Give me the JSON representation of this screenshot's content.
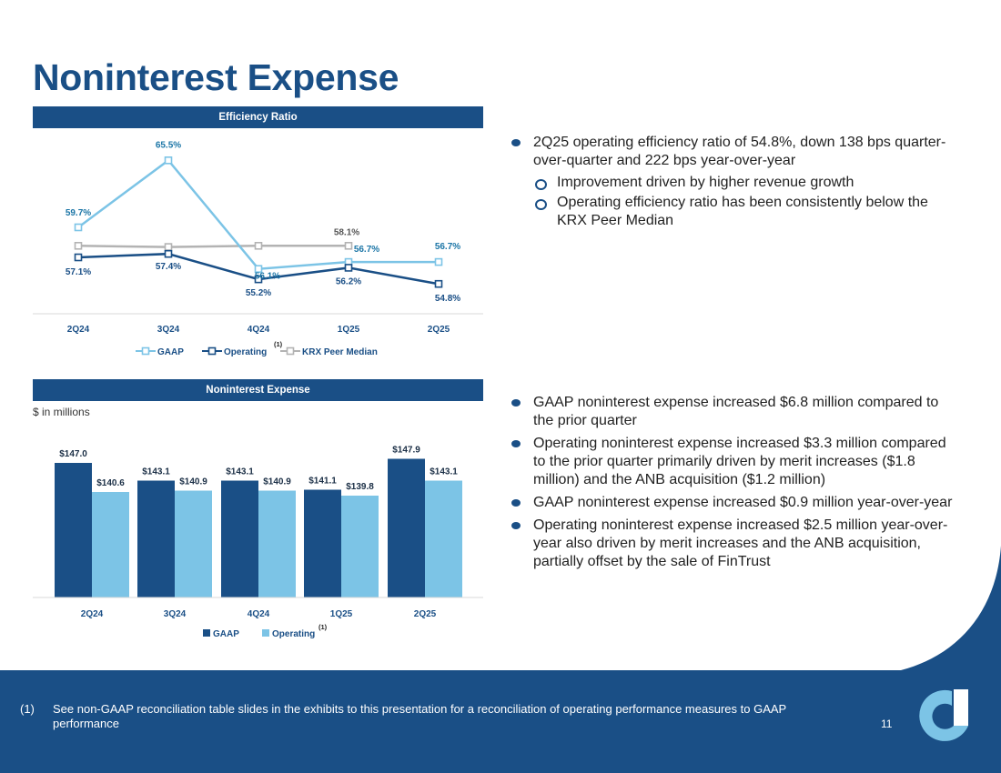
{
  "page": {
    "title": "Noninterest Expense",
    "page_number": "11",
    "footnote_num": "(1)",
    "footnote_text": "See non-GAAP reconciliation table slides in the exhibits to this presentation for a reconciliation of operating performance measures to GAAP performance"
  },
  "colors": {
    "navy": "#1a4f86",
    "light_blue": "#7cc4e6",
    "gray": "#b3b3b3",
    "label_blue": "#1b75a6"
  },
  "chart_data": [
    {
      "type": "line",
      "title": "Efficiency Ratio",
      "categories": [
        "2Q24",
        "3Q24",
        "4Q24",
        "1Q25",
        "2Q25"
      ],
      "ylim": [
        50,
        70
      ],
      "series": [
        {
          "name": "GAAP",
          "values": [
            59.7,
            65.5,
            56.1,
            56.7,
            56.7
          ],
          "labels": [
            "59.7%",
            "65.5%",
            "56.1%",
            "56.7%",
            "56.7%"
          ]
        },
        {
          "name": "Operating",
          "superscript": "(1)",
          "values": [
            57.1,
            57.4,
            55.2,
            56.2,
            54.8
          ],
          "labels": [
            "57.1%",
            "57.4%",
            "55.2%",
            "56.2%",
            "54.8%"
          ]
        },
        {
          "name": "KRX Peer Median",
          "values": [
            58.1,
            58.0,
            58.1,
            58.1,
            null
          ],
          "labels": [
            "",
            "",
            "",
            "58.1%",
            ""
          ]
        }
      ]
    },
    {
      "type": "bar",
      "title": "Noninterest Expense",
      "units_label": "$ in millions",
      "categories": [
        "2Q24",
        "3Q24",
        "4Q24",
        "1Q25",
        "2Q25"
      ],
      "ylim": [
        0,
        150
      ],
      "series": [
        {
          "name": "GAAP",
          "values": [
            147.0,
            143.1,
            143.1,
            141.1,
            147.9
          ],
          "labels": [
            "$147.0",
            "$143.1",
            "$143.1",
            "$141.1",
            "$147.9"
          ]
        },
        {
          "name": "Operating",
          "superscript": "(1)",
          "values": [
            140.6,
            140.9,
            140.9,
            139.8,
            143.1
          ],
          "labels": [
            "$140.6",
            "$140.9",
            "$140.9",
            "$139.8",
            "$143.1"
          ]
        }
      ]
    }
  ],
  "bullets_top": [
    {
      "text": "2Q25 operating efficiency ratio of 54.8%, down 138 bps quarter-over-quarter and 222 bps year-over-year",
      "sub": [
        "Improvement driven by higher revenue growth",
        "Operating efficiency ratio has been consistently below the KRX Peer Median"
      ]
    }
  ],
  "bullets_bottom": [
    "GAAP noninterest expense increased $6.8 million compared to the prior quarter",
    "Operating noninterest expense increased $3.3 million compared to the prior quarter primarily driven by merit increases ($1.8 million) and the ANB acquisition ($1.2 million)",
    "GAAP noninterest expense increased $0.9 million year-over-year",
    "Operating noninterest expense increased $2.5 million year-over-year also driven by merit increases and the ANB acquisition, partially offset by the sale of FinTrust"
  ]
}
